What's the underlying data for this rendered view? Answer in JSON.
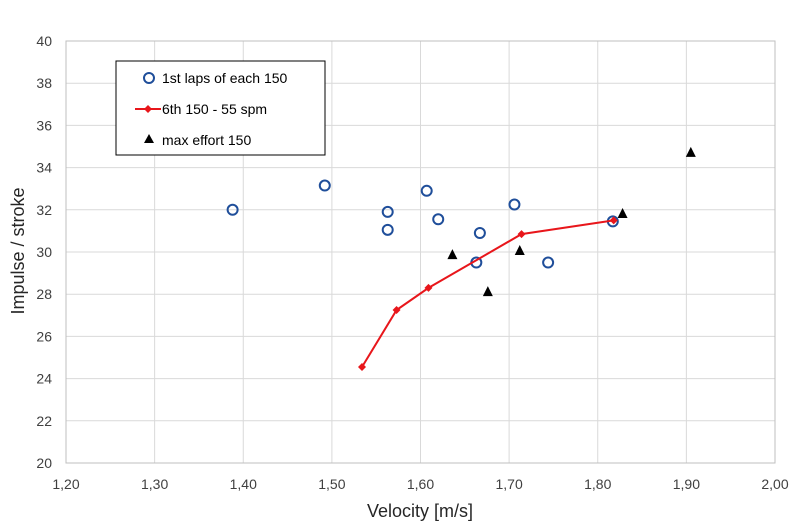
{
  "chart_data": {
    "type": "scatter",
    "title": "",
    "xlabel": "Velocity [m/s]",
    "ylabel": "Impulse / stroke",
    "xlim": [
      1.2,
      2.0
    ],
    "ylim": [
      20,
      40
    ],
    "x_ticks": [
      "1,20",
      "1,30",
      "1,40",
      "1,50",
      "1,60",
      "1,70",
      "1,80",
      "1,90",
      "2,00"
    ],
    "y_ticks": [
      "20",
      "22",
      "24",
      "26",
      "28",
      "30",
      "32",
      "34",
      "36",
      "38",
      "40"
    ],
    "x_tick_values": [
      1.2,
      1.3,
      1.4,
      1.5,
      1.6,
      1.7,
      1.8,
      1.9,
      2.0
    ],
    "y_tick_values": [
      20,
      22,
      24,
      26,
      28,
      30,
      32,
      34,
      36,
      38,
      40
    ],
    "grid": "horizontal",
    "legend_position": "top-left",
    "series": [
      {
        "name": "1st laps of each 150",
        "marker": "circle-open",
        "color": "#1f4e9a",
        "points": [
          [
            1.388,
            32.0
          ],
          [
            1.492,
            33.15
          ],
          [
            1.563,
            31.9
          ],
          [
            1.563,
            31.05
          ],
          [
            1.607,
            32.9
          ],
          [
            1.62,
            31.55
          ],
          [
            1.663,
            29.5
          ],
          [
            1.667,
            30.9
          ],
          [
            1.706,
            32.25
          ],
          [
            1.744,
            29.5
          ],
          [
            1.817,
            31.45
          ]
        ]
      },
      {
        "name": "6th 150 - 55 spm",
        "marker": "diamond-line",
        "color": "#e8161b",
        "points": [
          [
            1.534,
            24.55
          ],
          [
            1.573,
            27.25
          ],
          [
            1.609,
            28.3
          ],
          [
            1.714,
            30.85
          ],
          [
            1.818,
            31.5
          ]
        ]
      },
      {
        "name": "max effort 150",
        "marker": "triangle",
        "color": "#000000",
        "points": [
          [
            1.636,
            29.85
          ],
          [
            1.676,
            28.1
          ],
          [
            1.712,
            30.05
          ],
          [
            1.828,
            31.8
          ],
          [
            1.905,
            34.7
          ]
        ]
      }
    ]
  }
}
